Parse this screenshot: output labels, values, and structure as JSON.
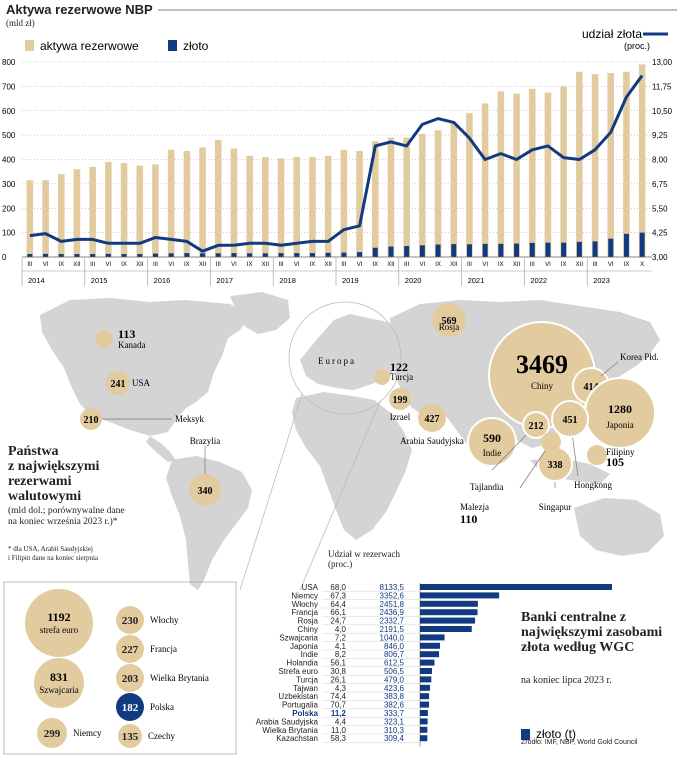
{
  "header": {
    "title": "Aktywa rezerwowe NBP",
    "unit": "(mld zł)",
    "legend_assets": "aktywa rezerwowe",
    "legend_gold": "złoto",
    "legend_share": "udział złota",
    "legend_share_unit": "(proc.)"
  },
  "colors": {
    "tan": "#e3cba0",
    "navy": "#123a80",
    "grid": "#999999",
    "land": "#d4d4d4"
  },
  "chart_data": [
    {
      "type": "bar",
      "title": "Aktywa rezerwowe NBP",
      "ylabel": "(mld zł)",
      "ylim_left": [
        0,
        800
      ],
      "ylim_right": [
        3.0,
        13.0
      ],
      "yticks_left": [
        "0",
        "100",
        "200",
        "300",
        "400",
        "500",
        "600",
        "700",
        "800"
      ],
      "yticks_right": [
        "3,00",
        "4,25",
        "5,50",
        "6,75",
        "8,00",
        "9,25",
        "10,50",
        "11,75",
        "13,00"
      ],
      "quarter_labels": [
        "III",
        "VI",
        "IX",
        "XII"
      ],
      "last_quarter_labels": [
        "III",
        "VI",
        "IX",
        "X"
      ],
      "years": [
        "2014",
        "2015",
        "2016",
        "2017",
        "2018",
        "2019",
        "2020",
        "2021",
        "2022",
        "2023"
      ],
      "series": [
        {
          "name": "aktywa rezerwowe",
          "type": "bar",
          "values": [
            315,
            315,
            340,
            360,
            370,
            390,
            385,
            375,
            380,
            440,
            435,
            450,
            480,
            445,
            415,
            410,
            405,
            410,
            410,
            415,
            440,
            435,
            475,
            490,
            490,
            505,
            520,
            550,
            590,
            630,
            680,
            670,
            690,
            675,
            700,
            760,
            750,
            755,
            760,
            790
          ]
        },
        {
          "name": "złoto",
          "type": "bar",
          "values": [
            12,
            13,
            12,
            12,
            12,
            13,
            12,
            12,
            14,
            15,
            16,
            15,
            15,
            16,
            15,
            15,
            16,
            16,
            16,
            17,
            18,
            20,
            38,
            43,
            45,
            48,
            51,
            53,
            52,
            54,
            54,
            55,
            58,
            59,
            59,
            62,
            64,
            75,
            95,
            100
          ]
        },
        {
          "name": "udział złota",
          "type": "line",
          "axis": "right",
          "values": [
            4.1,
            4.2,
            3.8,
            3.9,
            3.9,
            3.7,
            3.7,
            3.7,
            4.0,
            3.9,
            3.8,
            3.3,
            3.6,
            3.6,
            3.7,
            3.7,
            3.6,
            3.7,
            3.8,
            3.8,
            4.4,
            4.6,
            8.7,
            8.9,
            8.7,
            9.8,
            10.1,
            9.9,
            9.1,
            8.0,
            8.3,
            8.0,
            8.5,
            8.7,
            8.1,
            8.0,
            8.5,
            9.4,
            11.2,
            12.3
          ]
        }
      ]
    },
    {
      "type": "bar",
      "title": "Banki centralne z największymi zasobami złota według WGC",
      "subtitle": "na koniec lipca 2023 r.",
      "column_header": "Udział w rezerwach (proc.)",
      "legend": "złoto (t)",
      "categories": [
        "USA",
        "Niemcy",
        "Włochy",
        "Francja",
        "Rosja",
        "Chiny",
        "Szwajcaria",
        "Japonia",
        "Indie",
        "Holandia",
        "Strefa euro",
        "Turcja",
        "Tajwan",
        "Uzbekistan",
        "Portugalia",
        "Polska",
        "Arabia Saudyjska",
        "Wielka Brytania",
        "Kazachstan"
      ],
      "share": [
        "68,0",
        "67,3",
        "64,4",
        "66,1",
        "24,7",
        "4,0",
        "7,2",
        "4,1",
        "8,2",
        "56,1",
        "30,8",
        "26,1",
        "4,3",
        "74,4",
        "70,7",
        "11,2",
        "4,4",
        "11,0",
        "58,3"
      ],
      "value_labels": [
        "8133,5",
        "3352,6",
        "2451,8",
        "2436,9",
        "2332,7",
        "2191,5",
        "1040,0",
        "846,0",
        "806,7",
        "612,5",
        "506,5",
        "479,0",
        "423,6",
        "383,8",
        "382,6",
        "333,7",
        "323,1",
        "310,3",
        "309,4"
      ],
      "values": [
        8133.5,
        3352.6,
        2451.8,
        2436.9,
        2332.7,
        2191.5,
        1040.0,
        846.0,
        806.7,
        612.5,
        506.5,
        479.0,
        423.6,
        383.8,
        382.6,
        333.7,
        323.1,
        310.3,
        309.4
      ],
      "highlight": "Polska"
    }
  ],
  "map": {
    "heading": [
      "Państwa",
      "z największymi",
      "rezerwami",
      "walutowymi"
    ],
    "note": [
      "(mld dol.; porównywalne dane",
      "na koniec września 2023 r.)*"
    ],
    "footnote": [
      "* dla USA, Arabii Saudyjskiej",
      "i Filipin dane na koniec sierpnia"
    ],
    "europe_label": "Europa",
    "countries": [
      {
        "name": "Kanada",
        "value": "113"
      },
      {
        "name": "USA",
        "value": "241"
      },
      {
        "name": "Meksyk",
        "value": "210"
      },
      {
        "name": "Brazylia",
        "value": "340"
      },
      {
        "name": "Rosja",
        "value": "569"
      },
      {
        "name": "Turcja",
        "value": "122"
      },
      {
        "name": "Izrael",
        "value": "199"
      },
      {
        "name": "Arabia Saudyjska",
        "value": "427"
      },
      {
        "name": "Chiny",
        "value": "3469"
      },
      {
        "name": "Korea Płd.",
        "value": "414"
      },
      {
        "name": "Japonia",
        "value": "1280"
      },
      {
        "name": "Indie",
        "value": "590"
      },
      {
        "name": "Tajlandia",
        "value": "212"
      },
      {
        "name": "Hongkong",
        "value": "451"
      },
      {
        "name": "Singapur",
        "value": "338"
      },
      {
        "name": "Malezja",
        "value": "110"
      },
      {
        "name": "Filipiny",
        "value": "105"
      }
    ],
    "europe_box": [
      {
        "name": "strefa euro",
        "value": "1192"
      },
      {
        "name": "Szwajcaria",
        "value": "831"
      },
      {
        "name": "Niemcy",
        "value": "299"
      },
      {
        "name": "Włochy",
        "value": "230"
      },
      {
        "name": "Francja",
        "value": "227"
      },
      {
        "name": "Wielka Brytania",
        "value": "203"
      },
      {
        "name": "Polska",
        "value": "182"
      },
      {
        "name": "Czechy",
        "value": "135"
      }
    ]
  },
  "source": "Źródło: IMF, NBP, World Gold Council"
}
